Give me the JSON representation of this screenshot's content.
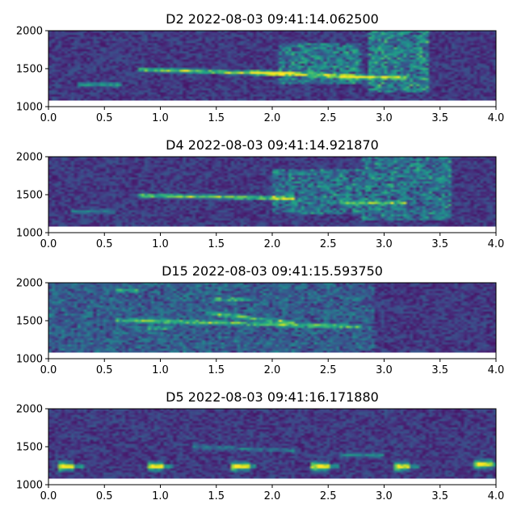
{
  "chart_data": [
    {
      "type": "heatmap",
      "title": "D2 2022-08-03 09:41:14.062500",
      "xlim": [
        0,
        4.0
      ],
      "ylim": [
        1000,
        2000
      ],
      "x_ticks": [
        "0.0",
        "0.5",
        "1.0",
        "1.5",
        "2.0",
        "2.5",
        "3.0",
        "3.5",
        "4.0"
      ],
      "y_ticks": [
        "1000",
        "1500",
        "2000"
      ],
      "features": [
        {
          "kind": "tone",
          "t0": 0.25,
          "t1": 0.65,
          "f": 1290,
          "intensity": 0.55
        },
        {
          "kind": "tone",
          "t0": 0.8,
          "t1": 2.1,
          "f": 1490,
          "f_end": 1430,
          "intensity": 0.85
        },
        {
          "kind": "tone",
          "t0": 1.8,
          "t1": 2.9,
          "f": 1460,
          "f_end": 1380,
          "intensity": 0.7
        },
        {
          "kind": "tone",
          "t0": 2.6,
          "t1": 3.2,
          "f": 1390,
          "intensity": 0.55
        },
        {
          "kind": "noise",
          "t0": 2.05,
          "t1": 2.8,
          "f0": 1300,
          "f1": 1850,
          "intensity": 0.45
        },
        {
          "kind": "noise",
          "t0": 2.85,
          "t1": 3.4,
          "f0": 1200,
          "f1": 2000,
          "intensity": 0.5
        }
      ]
    },
    {
      "type": "heatmap",
      "title": "D4 2022-08-03 09:41:14.921870",
      "xlim": [
        0,
        4.0
      ],
      "ylim": [
        1000,
        2000
      ],
      "x_ticks": [
        "0.0",
        "0.5",
        "1.0",
        "1.5",
        "2.0",
        "2.5",
        "3.0",
        "3.5",
        "4.0"
      ],
      "y_ticks": [
        "1000",
        "1500",
        "2000"
      ],
      "features": [
        {
          "kind": "tone",
          "t0": 0.8,
          "t1": 2.2,
          "f": 1490,
          "f_end": 1450,
          "intensity": 0.8
        },
        {
          "kind": "tone",
          "t0": 2.6,
          "t1": 3.2,
          "f": 1390,
          "intensity": 0.45
        },
        {
          "kind": "noise",
          "t0": 2.0,
          "t1": 2.8,
          "f0": 1250,
          "f1": 1850,
          "intensity": 0.4
        },
        {
          "kind": "noise",
          "t0": 2.8,
          "t1": 3.6,
          "f0": 1150,
          "f1": 2000,
          "intensity": 0.4
        },
        {
          "kind": "tone",
          "t0": 0.2,
          "t1": 0.6,
          "f": 1280,
          "intensity": 0.3
        }
      ]
    },
    {
      "type": "heatmap",
      "title": "D15 2022-08-03 09:41:15.593750",
      "xlim": [
        0,
        4.0
      ],
      "ylim": [
        1000,
        2000
      ],
      "x_ticks": [
        "0.0",
        "0.5",
        "1.0",
        "1.5",
        "2.0",
        "2.5",
        "3.0",
        "3.5",
        "4.0"
      ],
      "y_ticks": [
        "1000",
        "1500",
        "2000"
      ],
      "features": [
        {
          "kind": "tone",
          "t0": 0.6,
          "t1": 2.8,
          "f": 1510,
          "f_end": 1420,
          "intensity": 0.55
        },
        {
          "kind": "tone",
          "t0": 1.4,
          "t1": 2.2,
          "f": 1600,
          "f_end": 1480,
          "intensity": 0.5
        },
        {
          "kind": "tone",
          "t0": 1.5,
          "t1": 1.8,
          "f": 1780,
          "intensity": 0.45
        },
        {
          "kind": "tone",
          "t0": 0.6,
          "t1": 0.8,
          "f": 1900,
          "intensity": 0.4
        },
        {
          "kind": "tone",
          "t0": 0.9,
          "t1": 1.1,
          "f": 1400,
          "intensity": 0.35
        },
        {
          "kind": "noise",
          "t0": 0.0,
          "t1": 2.9,
          "f0": 1000,
          "f1": 2000,
          "intensity": 0.25
        }
      ]
    },
    {
      "type": "heatmap",
      "title": "D5 2022-08-03 09:41:16.171880",
      "xlim": [
        0,
        4.0
      ],
      "ylim": [
        1000,
        2000
      ],
      "x_ticks": [
        "0.0",
        "0.5",
        "1.0",
        "1.5",
        "2.0",
        "2.5",
        "3.0",
        "3.5",
        "4.0"
      ],
      "y_ticks": [
        "1000",
        "1500",
        "2000"
      ],
      "features": [
        {
          "kind": "chirp",
          "t0": 0.1,
          "f": 1240,
          "intensity": 0.8
        },
        {
          "kind": "chirp",
          "t0": 0.9,
          "f": 1240,
          "intensity": 0.8
        },
        {
          "kind": "chirp",
          "t0": 1.65,
          "f": 1240,
          "intensity": 0.8
        },
        {
          "kind": "chirp",
          "t0": 2.37,
          "f": 1240,
          "intensity": 0.8
        },
        {
          "kind": "chirp",
          "t0": 3.1,
          "f": 1240,
          "intensity": 0.75
        },
        {
          "kind": "chirp",
          "t0": 3.82,
          "f": 1270,
          "intensity": 0.75
        },
        {
          "kind": "tone",
          "t0": 1.3,
          "t1": 2.2,
          "f": 1500,
          "f_end": 1450,
          "intensity": 0.3
        },
        {
          "kind": "tone",
          "t0": 2.6,
          "t1": 3.0,
          "f": 1390,
          "intensity": 0.35
        }
      ]
    }
  ]
}
